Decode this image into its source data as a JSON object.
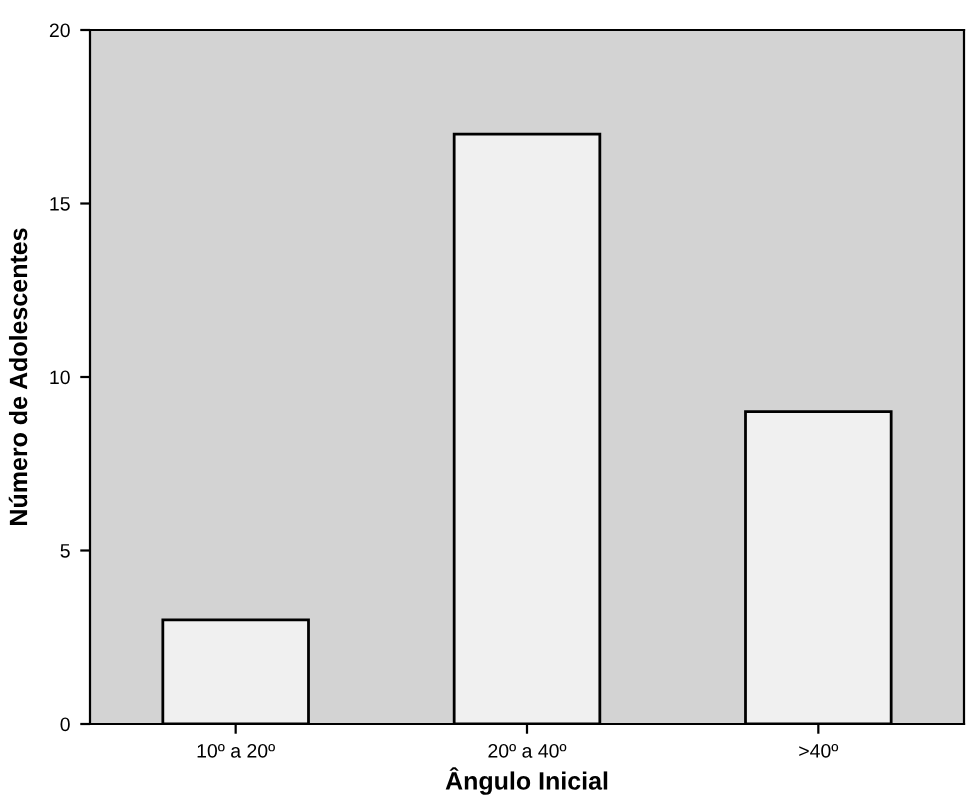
{
  "chart_data": {
    "type": "bar",
    "xlabel": "Ângulo Inicial",
    "ylabel": "Número de Adolescentes",
    "categories": [
      "10º a 20º",
      "20º a 40º",
      ">40º"
    ],
    "values": [
      3,
      17,
      9
    ],
    "color": "#f0f0f0",
    "ylim": [
      0,
      20
    ],
    "yticks": [
      0,
      5,
      10,
      15,
      20
    ],
    "grid": false,
    "legend": false
  }
}
